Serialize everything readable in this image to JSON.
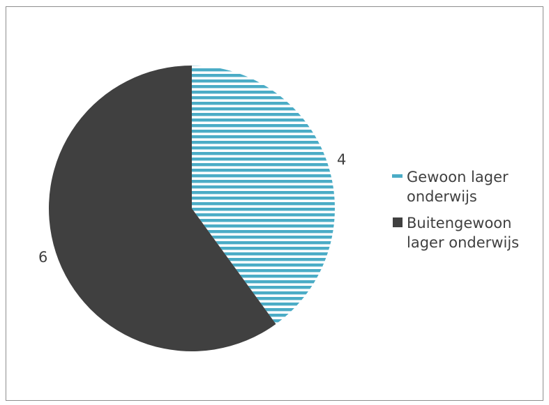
{
  "chart_data": {
    "type": "pie",
    "title": "",
    "categories": [
      "Gewoon lager onderwijs",
      "Buitengewoon lager onderwijs"
    ],
    "values": [
      4,
      6
    ],
    "data_labels": [
      "4",
      "6"
    ],
    "colors": [
      "#4bacc6",
      "#404040"
    ],
    "patterns": [
      "horizontal-stripes",
      "solid"
    ],
    "start_angle_deg": 0,
    "direction": "clockwise",
    "legend_position": "right"
  },
  "legend": {
    "items": [
      {
        "label": "Gewoon lager onderwijs",
        "color": "#4bacc6",
        "icon": "striped-swatch"
      },
      {
        "label": "Buitengewoon lager onderwijs",
        "color": "#404040",
        "icon": "solid-swatch"
      }
    ]
  }
}
